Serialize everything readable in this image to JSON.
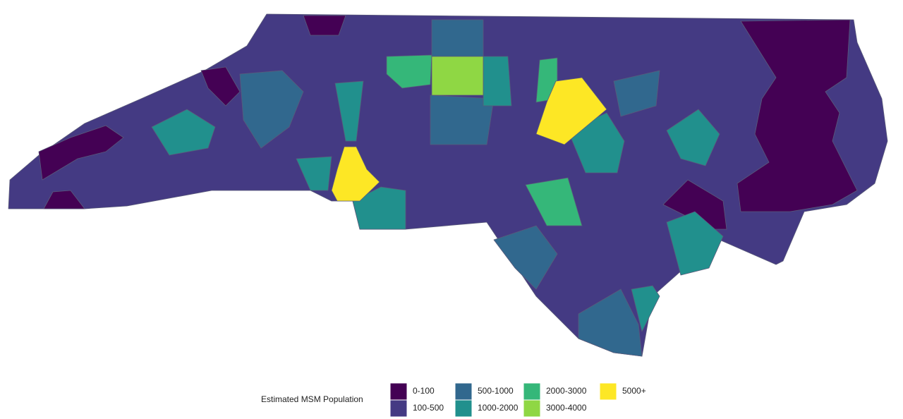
{
  "legend": {
    "title": "Estimated MSM Population",
    "items": [
      {
        "label": "0-100",
        "color": "#440154"
      },
      {
        "label": "100-500",
        "color": "#443a83"
      },
      {
        "label": "500-1000",
        "color": "#31688e"
      },
      {
        "label": "1000-2000",
        "color": "#21908d"
      },
      {
        "label": "2000-3000",
        "color": "#35b779"
      },
      {
        "label": "3000-4000",
        "color": "#8fd744"
      },
      {
        "label": "5000+",
        "color": "#fde725"
      }
    ]
  }
}
